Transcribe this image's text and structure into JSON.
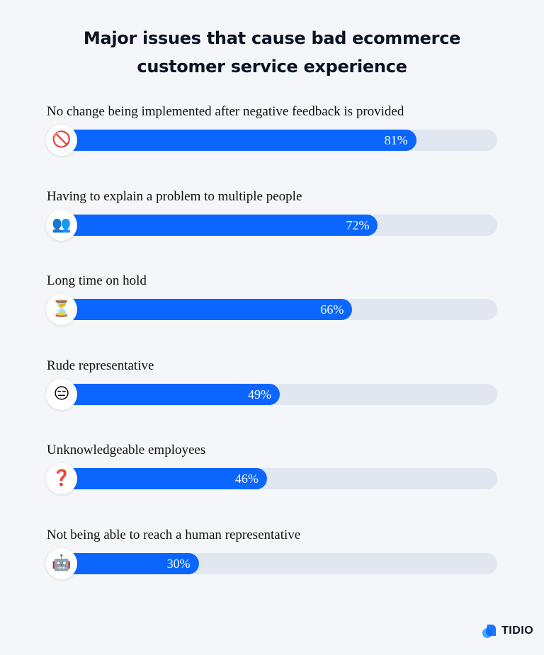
{
  "chart_data": {
    "type": "bar",
    "orientation": "horizontal",
    "title": "Major issues that cause bad ecommerce customer service experience",
    "title_lines": [
      "Major issues that cause bad ecommerce",
      "customer service experience"
    ],
    "categories": [
      "No change being implemented after negative feedback is provided",
      "Having to explain a problem to multiple people",
      "Long time on hold",
      "Rude representative",
      "Unknowledgeable employees",
      "Not being able to reach a human representative"
    ],
    "values": [
      81,
      72,
      66,
      49,
      46,
      30
    ],
    "value_labels": [
      "81%",
      "72%",
      "66%",
      "49%",
      "46%",
      "30%"
    ],
    "icons": [
      "prohibited-icon",
      "people-icon",
      "hourglass-icon",
      "expressionless-face-icon",
      "question-mark-icon",
      "robot-icon"
    ],
    "icon_glyphs": [
      "🚫",
      "👥",
      "⏳",
      "😑",
      "❓",
      "🤖"
    ],
    "xlim": [
      0,
      100
    ],
    "colors": {
      "fill": "#0a66ff",
      "track": "#e1e7f0",
      "background": "#f4f6f9"
    }
  },
  "brand": {
    "name": "TIDIO"
  }
}
